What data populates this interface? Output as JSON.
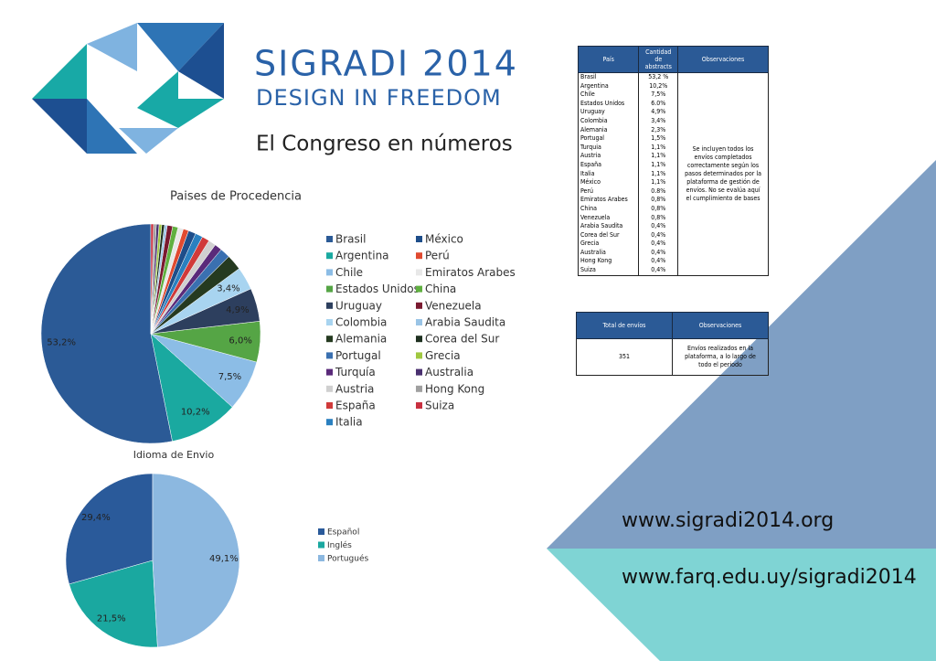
{
  "header": {
    "title": "SIGRADI 2014",
    "subtitle": "DESIGN IN FREEDOM",
    "tagline": "El Congreso en números"
  },
  "chart_data": [
    {
      "type": "pie",
      "title": "Paises de Procedencia",
      "categories": [
        "Brasil",
        "Argentina",
        "Chile",
        "Estados Unidos",
        "Uruguay",
        "Colombia",
        "Alemania",
        "Portugal",
        "Turquía",
        "Austria",
        "España",
        "Italia",
        "México",
        "Perú",
        "Emiratos Arabes",
        "China",
        "Venezuela",
        "Arabia Saudita",
        "Corea del Sur",
        "Grecia",
        "Australia",
        "Hong Kong",
        "Suiza"
      ],
      "values": [
        53.2,
        10.2,
        7.5,
        6.0,
        4.9,
        3.4,
        2.3,
        1.5,
        1.1,
        1.1,
        1.1,
        1.1,
        1.1,
        0.8,
        0.8,
        0.8,
        0.8,
        0.4,
        0.4,
        0.4,
        0.4,
        0.4,
        0.4
      ],
      "value_labels": [
        "53,2%",
        "10,2%",
        "7,5%",
        "6,0%",
        "4,9%",
        "3,4%",
        null,
        null,
        null,
        null,
        null,
        null,
        null,
        null,
        null,
        null,
        null,
        null,
        null,
        null,
        null,
        null,
        null
      ],
      "colors": [
        "#2b5a96",
        "#1aa9a0",
        "#8cbde6",
        "#55a545",
        "#2d3f5e",
        "#a8d4f0",
        "#253a20",
        "#3a70b0",
        "#5a2a7a",
        "#d0d0d0",
        "#d03a3a",
        "#2a80c0",
        "#1e4e8a",
        "#e04a30",
        "#e8e8e8",
        "#60b040",
        "#7a1a30",
        "#9ac4e6",
        "#1e3020",
        "#a0c840",
        "#4a3070",
        "#a0a0a0",
        "#c83040"
      ]
    },
    {
      "type": "pie",
      "title": "Idioma de Envio",
      "categories": [
        "Español",
        "Inglés",
        "Portugués"
      ],
      "values": [
        29.4,
        21.5,
        49.1
      ],
      "value_labels": [
        "29,4%",
        "21,5%",
        "49,1%"
      ],
      "colors": [
        "#2a5a9a",
        "#1aa8a0",
        "#8cb8e0"
      ]
    }
  ],
  "table": {
    "headers": [
      "País",
      "Cantidad de abstracts",
      "Observaciones"
    ],
    "rows": [
      [
        "Brasil",
        "53,2 %"
      ],
      [
        "Argentina",
        "10,2%"
      ],
      [
        "Chile",
        "7,5%"
      ],
      [
        "Estados Unidos",
        "6.0%"
      ],
      [
        "Uruguay",
        "4,9%"
      ],
      [
        "Colombia",
        "3,4%"
      ],
      [
        "Alemania",
        "2,3%"
      ],
      [
        "Portugal",
        "1,5%"
      ],
      [
        "Turquia",
        "1,1%"
      ],
      [
        "Austria",
        "1,1%"
      ],
      [
        "España",
        "1,1%"
      ],
      [
        "Italia",
        "1,1%"
      ],
      [
        "México",
        "1,1%"
      ],
      [
        "Perú",
        "0.8%"
      ],
      [
        "Emiratos Arabes",
        "0,8%"
      ],
      [
        "China",
        "0,8%"
      ],
      [
        "Venezuela",
        "0,8%"
      ],
      [
        "Arabia Saudita",
        "0,4%"
      ],
      [
        "Corea del Sur",
        "0,4%"
      ],
      [
        "Grecia",
        "0,4%"
      ],
      [
        "Australia",
        "0,4%"
      ],
      [
        "Hong Kong",
        "0,4%"
      ],
      [
        "Suiza",
        "0,4%"
      ]
    ],
    "note": "Se incluyen todos los envíos completados correctamente según los pasos determinados por la plataforma de gestión de envíos. No se evalúa aquí el cumplimiento de bases"
  },
  "summary_table": {
    "headers": [
      "Total de envíos",
      "Observaciones"
    ],
    "total": "351",
    "note": "Envíos realizados en la plataforma, a lo largo de todo el periodo"
  },
  "links": [
    "www.sigradi2014.org",
    "www.farq.edu.uy/sigradi2014"
  ]
}
